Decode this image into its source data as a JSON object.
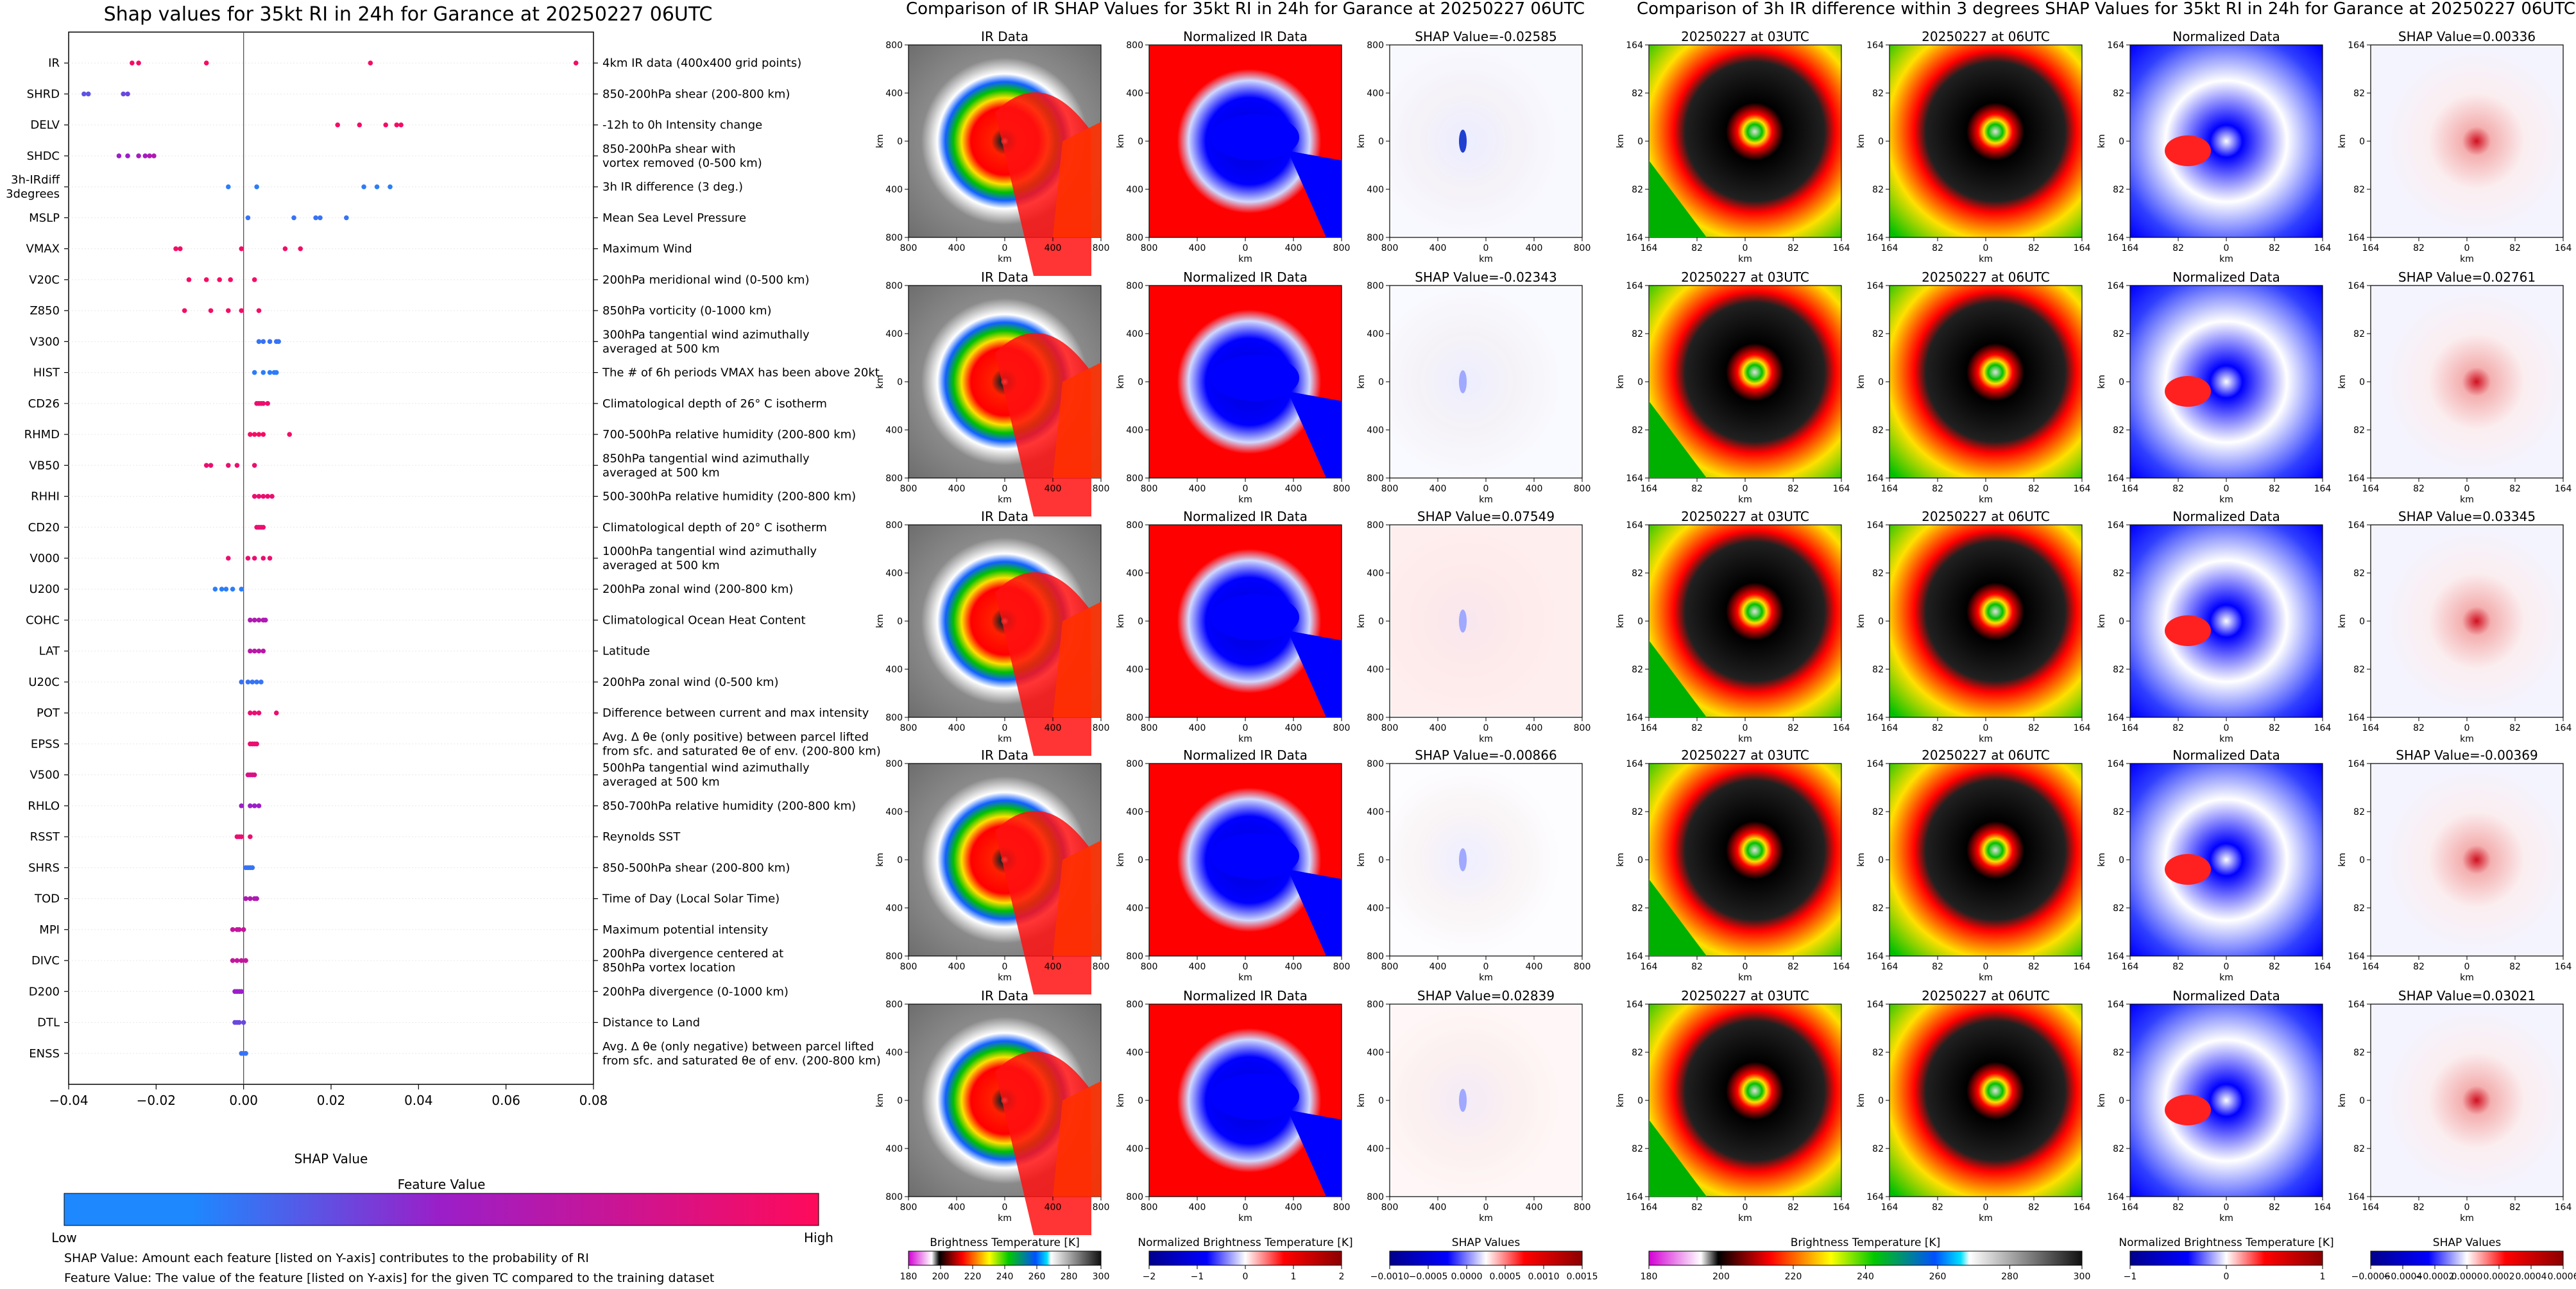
{
  "left_chart": {
    "title": "Shap values for 35kt RI in 24h for Garance at 20250227 06UTC",
    "xlabel": "SHAP Value",
    "xticks": [
      "−0.04",
      "−0.02",
      "0.00",
      "0.02",
      "0.04",
      "0.06",
      "0.08"
    ],
    "colorbar_title": "Feature Value",
    "colorbar_low": "Low",
    "colorbar_high": "High",
    "footnote_1": "SHAP Value: Amount each feature [listed on Y-axis] contributes to the probability of RI",
    "footnote_2": "Feature Value: The value of the feature [listed on Y-axis] for the given TC compared to the training dataset"
  },
  "chart_data": [
    {
      "type": "scatter",
      "title": "Shap values for 35kt RI in 24h for Garance at 20250227 06UTC",
      "xlabel": "SHAP Value",
      "xlim": [
        -0.04,
        0.08
      ],
      "color_scale": {
        "low": "#1e88ff",
        "mid": "#9b1ec8",
        "high": "#ff0a5a"
      },
      "features": [
        {
          "code": "IR",
          "desc": [
            "4km IR data (400x400 grid points)"
          ],
          "points": [
            [
              -0.0255,
              0.95
            ],
            [
              -0.024,
              0.95
            ],
            [
              -0.0085,
              0.95
            ],
            [
              0.029,
              0.95
            ],
            [
              0.076,
              0.95
            ]
          ]
        },
        {
          "code": "SHRD",
          "desc": [
            "850-200hPa shear (200-800 km)"
          ],
          "points": [
            [
              -0.0365,
              0.25
            ],
            [
              -0.0355,
              0.25
            ],
            [
              -0.0275,
              0.3
            ],
            [
              -0.0265,
              0.3
            ]
          ]
        },
        {
          "code": "DELV",
          "desc": [
            "-12h to 0h Intensity change"
          ],
          "points": [
            [
              0.0215,
              0.95
            ],
            [
              0.0265,
              0.95
            ],
            [
              0.0325,
              0.95
            ],
            [
              0.035,
              0.95
            ],
            [
              0.036,
              0.95
            ]
          ]
        },
        {
          "code": "SHDC",
          "desc": [
            "850-200hPa shear with",
            "vortex removed (0-500 km)"
          ],
          "points": [
            [
              -0.0285,
              0.5
            ],
            [
              -0.0265,
              0.5
            ],
            [
              -0.024,
              0.55
            ],
            [
              -0.0225,
              0.55
            ],
            [
              -0.0215,
              0.6
            ],
            [
              -0.0205,
              0.6
            ]
          ]
        },
        {
          "code": "3h-IRdiff\n3degrees",
          "desc": [
            "3h IR difference (3 deg.)"
          ],
          "points": [
            [
              -0.0035,
              0.05
            ],
            [
              0.003,
              0.05
            ],
            [
              0.0275,
              0.05
            ],
            [
              0.0305,
              0.05
            ],
            [
              0.0335,
              0.05
            ]
          ]
        },
        {
          "code": "MSLP",
          "desc": [
            "Mean Sea Level Pressure"
          ],
          "points": [
            [
              0.001,
              0.1
            ],
            [
              0.0115,
              0.1
            ],
            [
              0.0165,
              0.1
            ],
            [
              0.0175,
              0.1
            ],
            [
              0.0235,
              0.1
            ]
          ]
        },
        {
          "code": "VMAX",
          "desc": [
            "Maximum Wind"
          ],
          "points": [
            [
              -0.0155,
              0.95
            ],
            [
              -0.0145,
              0.95
            ],
            [
              -0.0005,
              0.95
            ],
            [
              0.0095,
              0.95
            ],
            [
              0.013,
              0.95
            ]
          ]
        },
        {
          "code": "V20C",
          "desc": [
            "200hPa meridional wind (0-500 km)"
          ],
          "points": [
            [
              -0.0125,
              0.95
            ],
            [
              -0.0085,
              0.95
            ],
            [
              -0.0055,
              0.95
            ],
            [
              -0.003,
              0.95
            ],
            [
              0.0025,
              0.95
            ]
          ]
        },
        {
          "code": "Z850",
          "desc": [
            "850hPa vorticity (0-1000 km)"
          ],
          "points": [
            [
              -0.0135,
              0.95
            ],
            [
              -0.0075,
              0.95
            ],
            [
              -0.0035,
              0.95
            ],
            [
              -0.0005,
              0.95
            ],
            [
              0.0035,
              0.95
            ]
          ]
        },
        {
          "code": "V300",
          "desc": [
            "300hPa tangential wind azimuthally",
            "averaged at 500 km"
          ],
          "points": [
            [
              0.0035,
              0.1
            ],
            [
              0.0045,
              0.1
            ],
            [
              0.006,
              0.1
            ],
            [
              0.0075,
              0.1
            ],
            [
              0.008,
              0.1
            ]
          ]
        },
        {
          "code": "HIST",
          "desc": [
            "The # of 6h periods VMAX has been above 20kt"
          ],
          "points": [
            [
              0.0025,
              0.05
            ],
            [
              0.0045,
              0.05
            ],
            [
              0.006,
              0.05
            ],
            [
              0.007,
              0.05
            ],
            [
              0.0075,
              0.05
            ]
          ]
        },
        {
          "code": "CD26",
          "desc": [
            "Climatological depth of 26° C isotherm"
          ],
          "points": [
            [
              0.003,
              0.9
            ],
            [
              0.0035,
              0.9
            ],
            [
              0.004,
              0.9
            ],
            [
              0.0045,
              0.9
            ],
            [
              0.0055,
              0.9
            ]
          ]
        },
        {
          "code": "RHMD",
          "desc": [
            "700-500hPa relative humidity (200-800 km)"
          ],
          "points": [
            [
              0.0015,
              0.95
            ],
            [
              0.0025,
              0.95
            ],
            [
              0.0035,
              0.95
            ],
            [
              0.0045,
              0.95
            ],
            [
              0.0105,
              0.95
            ]
          ]
        },
        {
          "code": "VB50",
          "desc": [
            "850hPa tangential wind azimuthally",
            "averaged at 500 km"
          ],
          "points": [
            [
              -0.0085,
              0.9
            ],
            [
              -0.0075,
              0.9
            ],
            [
              -0.0035,
              0.9
            ],
            [
              -0.0015,
              0.9
            ],
            [
              0.0025,
              0.9
            ]
          ]
        },
        {
          "code": "RHHI",
          "desc": [
            "500-300hPa relative humidity (200-800 km)"
          ],
          "points": [
            [
              0.0025,
              0.9
            ],
            [
              0.0035,
              0.9
            ],
            [
              0.0045,
              0.9
            ],
            [
              0.0055,
              0.9
            ],
            [
              0.0065,
              0.9
            ]
          ]
        },
        {
          "code": "CD20",
          "desc": [
            "Climatological depth of 20° C isotherm"
          ],
          "points": [
            [
              0.003,
              0.9
            ],
            [
              0.0035,
              0.9
            ],
            [
              0.004,
              0.9
            ],
            [
              0.0045,
              0.9
            ]
          ]
        },
        {
          "code": "V000",
          "desc": [
            "1000hPa tangential wind azimuthally",
            "averaged at 500 km"
          ],
          "points": [
            [
              -0.0035,
              0.9
            ],
            [
              0.001,
              0.9
            ],
            [
              0.0025,
              0.9
            ],
            [
              0.0045,
              0.9
            ],
            [
              0.006,
              0.9
            ]
          ]
        },
        {
          "code": "U200",
          "desc": [
            "200hPa zonal wind (200-800 km)"
          ],
          "points": [
            [
              -0.0065,
              0.05
            ],
            [
              -0.005,
              0.05
            ],
            [
              -0.004,
              0.05
            ],
            [
              -0.0025,
              0.05
            ],
            [
              -0.0005,
              0.05
            ]
          ]
        },
        {
          "code": "COHC",
          "desc": [
            "Climatological Ocean Heat Content"
          ],
          "points": [
            [
              0.0015,
              0.6
            ],
            [
              0.0025,
              0.6
            ],
            [
              0.0035,
              0.6
            ],
            [
              0.0045,
              0.6
            ],
            [
              0.005,
              0.6
            ]
          ]
        },
        {
          "code": "LAT",
          "desc": [
            "Latitude"
          ],
          "points": [
            [
              0.0015,
              0.65
            ],
            [
              0.0025,
              0.65
            ],
            [
              0.0035,
              0.65
            ],
            [
              0.0045,
              0.65
            ]
          ]
        },
        {
          "code": "U20C",
          "desc": [
            "200hPa zonal wind (0-500 km)"
          ],
          "points": [
            [
              -0.0005,
              0.1
            ],
            [
              0.001,
              0.1
            ],
            [
              0.002,
              0.1
            ],
            [
              0.003,
              0.1
            ],
            [
              0.004,
              0.1
            ]
          ]
        },
        {
          "code": "POT",
          "desc": [
            "Difference between current and max intensity"
          ],
          "points": [
            [
              0.0015,
              0.9
            ],
            [
              0.0025,
              0.9
            ],
            [
              0.0035,
              0.9
            ],
            [
              0.0075,
              0.9
            ]
          ]
        },
        {
          "code": "EPSS",
          "desc": [
            "Avg. Δ θe (only positive) between parcel lifted",
            "from sfc. and saturated θe of env. (200-800 km)"
          ],
          "points": [
            [
              0.0015,
              0.9
            ],
            [
              0.002,
              0.9
            ],
            [
              0.0025,
              0.9
            ],
            [
              0.003,
              0.9
            ]
          ]
        },
        {
          "code": "V500",
          "desc": [
            "500hPa tangential wind azimuthally",
            "averaged at 500 km"
          ],
          "points": [
            [
              0.001,
              0.8
            ],
            [
              0.0015,
              0.8
            ],
            [
              0.002,
              0.8
            ],
            [
              0.0025,
              0.8
            ]
          ]
        },
        {
          "code": "RHLO",
          "desc": [
            "850-700hPa relative humidity (200-800 km)"
          ],
          "points": [
            [
              -0.0005,
              0.5
            ],
            [
              0.0015,
              0.5
            ],
            [
              0.0025,
              0.5
            ],
            [
              0.0035,
              0.5
            ]
          ]
        },
        {
          "code": "RSST",
          "desc": [
            "Reynolds SST"
          ],
          "points": [
            [
              -0.0015,
              0.9
            ],
            [
              -0.001,
              0.9
            ],
            [
              -0.0005,
              0.9
            ],
            [
              0.0015,
              0.9
            ]
          ]
        },
        {
          "code": "SHRS",
          "desc": [
            "850-500hPa shear (200-800 km)"
          ],
          "points": [
            [
              0.0005,
              0.1
            ],
            [
              0.001,
              0.1
            ],
            [
              0.0015,
              0.1
            ],
            [
              0.002,
              0.1
            ]
          ]
        },
        {
          "code": "TOD",
          "desc": [
            "Time of Day (Local Solar Time)"
          ],
          "points": [
            [
              0.0005,
              0.6
            ],
            [
              0.0015,
              0.6
            ],
            [
              0.0025,
              0.6
            ],
            [
              0.003,
              0.6
            ]
          ]
        },
        {
          "code": "MPI",
          "desc": [
            "Maximum potential intensity"
          ],
          "points": [
            [
              -0.0025,
              0.7
            ],
            [
              -0.0015,
              0.7
            ],
            [
              -0.001,
              0.7
            ],
            [
              0.0,
              0.7
            ]
          ]
        },
        {
          "code": "DIVC",
          "desc": [
            "200hPa divergence centered at",
            "850hPa vortex location"
          ],
          "points": [
            [
              -0.0025,
              0.7
            ],
            [
              -0.0015,
              0.7
            ],
            [
              -0.0005,
              0.7
            ],
            [
              0.0005,
              0.7
            ]
          ]
        },
        {
          "code": "D200",
          "desc": [
            "200hPa divergence (0-1000 km)"
          ],
          "points": [
            [
              -0.002,
              0.5
            ],
            [
              -0.0015,
              0.5
            ],
            [
              -0.001,
              0.5
            ],
            [
              -0.0005,
              0.5
            ]
          ]
        },
        {
          "code": "DTL",
          "desc": [
            "Distance to Land"
          ],
          "points": [
            [
              -0.002,
              0.3
            ],
            [
              -0.0015,
              0.3
            ],
            [
              -0.001,
              0.3
            ],
            [
              0.0,
              0.3
            ]
          ]
        },
        {
          "code": "ENSS",
          "desc": [
            "Avg. Δ θe (only negative) between parcel lifted",
            "from sfc. and saturated θe of env. (200-800 km)"
          ],
          "points": [
            [
              -0.0005,
              0.1
            ],
            [
              0.0,
              0.1
            ],
            [
              0.0005,
              0.1
            ]
          ]
        }
      ]
    },
    {
      "type": "heatmap",
      "title": "Comparison of IR SHAP Values for 35kt RI in 24h for Garance at 20250227 06UTC",
      "columns": [
        "IR Data",
        "Normalized IR Data",
        "SHAP Value"
      ],
      "x_ticks": [
        "800",
        "400",
        "0",
        "400",
        "800"
      ],
      "y_ticks": [
        "800",
        "400",
        "0",
        "400",
        "800"
      ],
      "axis_label": "km",
      "rows_shap_values": [
        "SHAP Value=-0.02585",
        "SHAP Value=-0.02343",
        "SHAP Value=0.07549",
        "SHAP Value=-0.00866",
        "SHAP Value=0.02839"
      ],
      "colorbars": [
        {
          "label": "Brightness Temperature [K]",
          "ticks": [
            "180",
            "200",
            "220",
            "240",
            "260",
            "280",
            "300"
          ]
        },
        {
          "label": "Normalized Brightness Temperature [K]",
          "ticks": [
            "−2",
            "−1",
            "0",
            "1",
            "2"
          ]
        },
        {
          "label": "SHAP Values",
          "ticks": [
            "−0.0010",
            "−0.0005",
            "0.0000",
            "0.0005",
            "0.0010",
            "0.0015"
          ]
        }
      ]
    },
    {
      "type": "heatmap",
      "title": "Comparison of 3h IR difference within 3 degrees SHAP Values for 35kt RI in 24h for Garance at 20250227 06UTC",
      "columns": [
        "20250227 at 03UTC",
        "20250227 at 06UTC",
        "Normalized Data",
        "SHAP Value"
      ],
      "x_ticks": [
        "164",
        "82",
        "0",
        "82",
        "164"
      ],
      "y_ticks": [
        "164",
        "82",
        "0",
        "82",
        "164"
      ],
      "axis_label": "km",
      "rows_shap_values": [
        "SHAP Value=0.00336",
        "SHAP Value=0.02761",
        "SHAP Value=0.03345",
        "SHAP Value=-0.00369",
        "SHAP Value=0.03021"
      ],
      "colorbars": [
        {
          "label": "Brightness Temperature [K]",
          "ticks": [
            "180",
            "200",
            "220",
            "240",
            "260",
            "280",
            "300"
          ]
        },
        {
          "label": "Normalized Brightness Temperature [K]",
          "ticks": [
            "−1",
            "0",
            "1"
          ]
        },
        {
          "label": "SHAP Values",
          "ticks": [
            "−0.0006",
            "−0.0004",
            "−0.0002",
            "0.0000",
            "0.0002",
            "0.0004",
            "0.0006"
          ]
        }
      ]
    }
  ]
}
